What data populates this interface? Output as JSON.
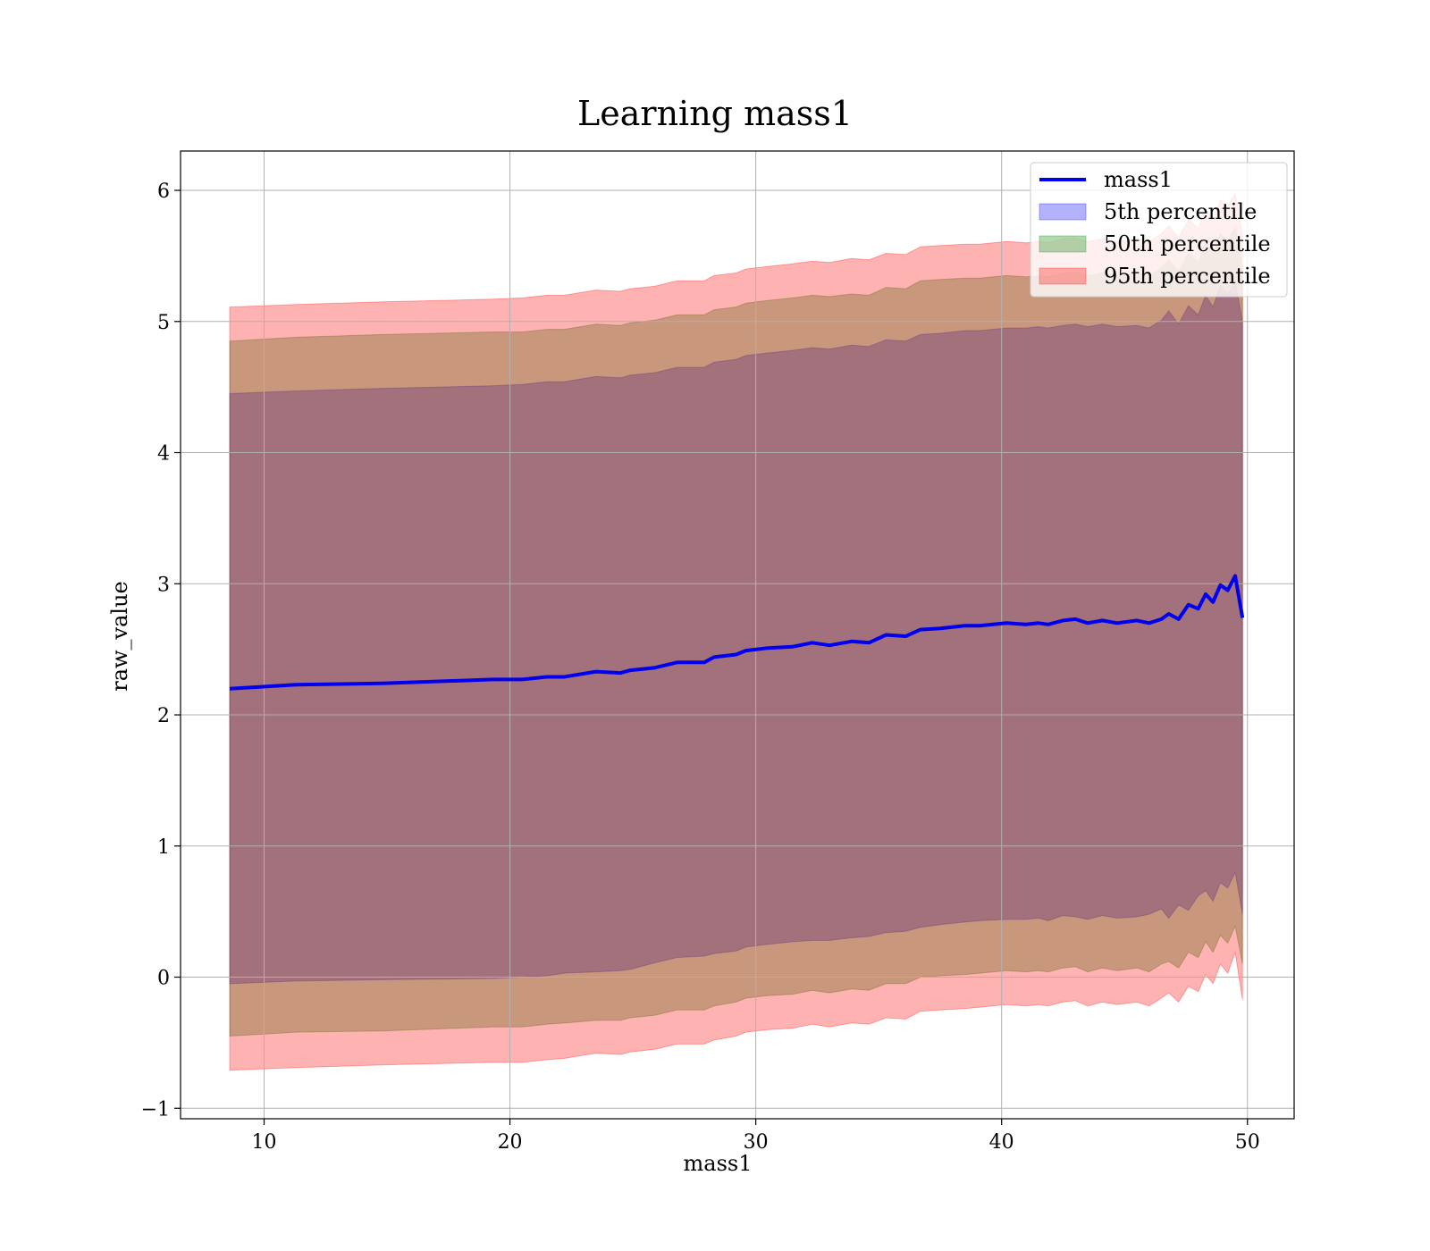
{
  "chart_data": {
    "type": "area",
    "title": "Learning mass1",
    "xlabel": "mass1",
    "ylabel": "raw_value",
    "xlim": [
      6.6,
      51.9
    ],
    "ylim": [
      -1.08,
      6.3
    ],
    "xticks": [
      10,
      20,
      30,
      40,
      50
    ],
    "yticks": [
      -1,
      0,
      1,
      2,
      3,
      4,
      5,
      6
    ],
    "grid": true,
    "legend_position": "top-right",
    "x": [
      8.6,
      11.3,
      14.8,
      19.3,
      20.5,
      21.5,
      22.2,
      23.5,
      24.5,
      24.9,
      25.9,
      26.8,
      27.9,
      28.3,
      29.2,
      29.6,
      30.5,
      31.5,
      32.3,
      33.0,
      33.9,
      34.6,
      35.3,
      36.1,
      36.7,
      37.5,
      38.5,
      39.1,
      40.2,
      41.0,
      41.5,
      41.9,
      42.5,
      43.0,
      43.5,
      44.1,
      44.7,
      45.5,
      46.0,
      46.5,
      46.8,
      47.2,
      47.6,
      48.0,
      48.3,
      48.6,
      48.9,
      49.2,
      49.5,
      49.8
    ],
    "series": [
      {
        "name": "mass1",
        "kind": "line",
        "color": "#0000ee",
        "values": [
          2.2,
          2.23,
          2.24,
          2.27,
          2.27,
          2.29,
          2.29,
          2.33,
          2.32,
          2.34,
          2.36,
          2.4,
          2.4,
          2.44,
          2.46,
          2.49,
          2.51,
          2.52,
          2.55,
          2.53,
          2.56,
          2.55,
          2.61,
          2.6,
          2.65,
          2.66,
          2.68,
          2.68,
          2.7,
          2.69,
          2.7,
          2.69,
          2.72,
          2.73,
          2.7,
          2.72,
          2.7,
          2.72,
          2.7,
          2.73,
          2.77,
          2.73,
          2.84,
          2.81,
          2.92,
          2.86,
          2.99,
          2.95,
          3.06,
          2.74
        ]
      },
      {
        "name": "5th percentile",
        "kind": "band",
        "color": "#0000ff",
        "lower": [
          -0.05,
          -0.03,
          -0.02,
          -0.01,
          0.0,
          0.01,
          0.03,
          0.04,
          0.05,
          0.06,
          0.11,
          0.15,
          0.16,
          0.18,
          0.2,
          0.23,
          0.25,
          0.27,
          0.28,
          0.28,
          0.3,
          0.31,
          0.34,
          0.35,
          0.38,
          0.4,
          0.42,
          0.43,
          0.44,
          0.44,
          0.45,
          0.43,
          0.47,
          0.46,
          0.44,
          0.47,
          0.45,
          0.46,
          0.48,
          0.52,
          0.45,
          0.55,
          0.51,
          0.62,
          0.66,
          0.58,
          0.72,
          0.68,
          0.8,
          0.48
        ],
        "upper": [
          4.45,
          4.47,
          4.49,
          4.51,
          4.52,
          4.54,
          4.54,
          4.58,
          4.57,
          4.59,
          4.61,
          4.65,
          4.65,
          4.69,
          4.71,
          4.74,
          4.76,
          4.78,
          4.8,
          4.79,
          4.82,
          4.81,
          4.86,
          4.85,
          4.9,
          4.91,
          4.93,
          4.93,
          4.95,
          4.95,
          4.96,
          4.95,
          4.97,
          4.98,
          4.96,
          4.98,
          4.96,
          4.97,
          4.95,
          5.01,
          5.08,
          4.98,
          5.12,
          5.05,
          5.2,
          5.11,
          5.27,
          5.21,
          5.31,
          5.0
        ]
      },
      {
        "name": "50th percentile",
        "kind": "band",
        "color": "#008000",
        "lower": [
          -0.45,
          -0.42,
          -0.41,
          -0.38,
          -0.38,
          -0.36,
          -0.35,
          -0.33,
          -0.33,
          -0.31,
          -0.29,
          -0.25,
          -0.25,
          -0.22,
          -0.19,
          -0.16,
          -0.14,
          -0.13,
          -0.1,
          -0.12,
          -0.09,
          -0.1,
          -0.05,
          -0.05,
          0.0,
          0.01,
          0.02,
          0.03,
          0.05,
          0.04,
          0.05,
          0.04,
          0.07,
          0.08,
          0.04,
          0.07,
          0.05,
          0.07,
          0.04,
          0.1,
          0.12,
          0.07,
          0.19,
          0.15,
          0.27,
          0.19,
          0.32,
          0.26,
          0.39,
          0.1
        ],
        "upper": [
          4.85,
          4.88,
          4.9,
          4.92,
          4.92,
          4.94,
          4.94,
          4.98,
          4.97,
          4.99,
          5.01,
          5.05,
          5.05,
          5.09,
          5.11,
          5.14,
          5.16,
          5.18,
          5.2,
          5.19,
          5.21,
          5.2,
          5.26,
          5.25,
          5.31,
          5.32,
          5.33,
          5.33,
          5.35,
          5.34,
          5.35,
          5.34,
          5.37,
          5.38,
          5.35,
          5.37,
          5.35,
          5.37,
          5.35,
          5.41,
          5.47,
          5.38,
          5.52,
          5.45,
          5.6,
          5.51,
          5.67,
          5.61,
          5.72,
          5.4
        ]
      },
      {
        "name": "95th percentile",
        "kind": "band",
        "color": "#ff0000",
        "lower": [
          -0.71,
          -0.69,
          -0.67,
          -0.65,
          -0.65,
          -0.63,
          -0.62,
          -0.58,
          -0.59,
          -0.57,
          -0.55,
          -0.51,
          -0.51,
          -0.48,
          -0.45,
          -0.42,
          -0.4,
          -0.39,
          -0.36,
          -0.38,
          -0.35,
          -0.36,
          -0.31,
          -0.32,
          -0.26,
          -0.25,
          -0.24,
          -0.23,
          -0.21,
          -0.22,
          -0.21,
          -0.22,
          -0.19,
          -0.18,
          -0.22,
          -0.19,
          -0.21,
          -0.19,
          -0.22,
          -0.16,
          -0.12,
          -0.19,
          -0.07,
          -0.11,
          0.02,
          -0.05,
          0.1,
          0.03,
          0.19,
          -0.17
        ],
        "upper": [
          5.11,
          5.13,
          5.15,
          5.17,
          5.18,
          5.2,
          5.2,
          5.24,
          5.23,
          5.25,
          5.27,
          5.31,
          5.31,
          5.35,
          5.37,
          5.4,
          5.42,
          5.44,
          5.46,
          5.45,
          5.48,
          5.47,
          5.52,
          5.51,
          5.57,
          5.58,
          5.59,
          5.59,
          5.61,
          5.6,
          5.61,
          5.6,
          5.63,
          5.64,
          5.61,
          5.63,
          5.61,
          5.63,
          5.61,
          5.67,
          5.73,
          5.64,
          5.78,
          5.71,
          5.86,
          5.77,
          5.93,
          5.87,
          5.98,
          5.66
        ]
      }
    ]
  }
}
